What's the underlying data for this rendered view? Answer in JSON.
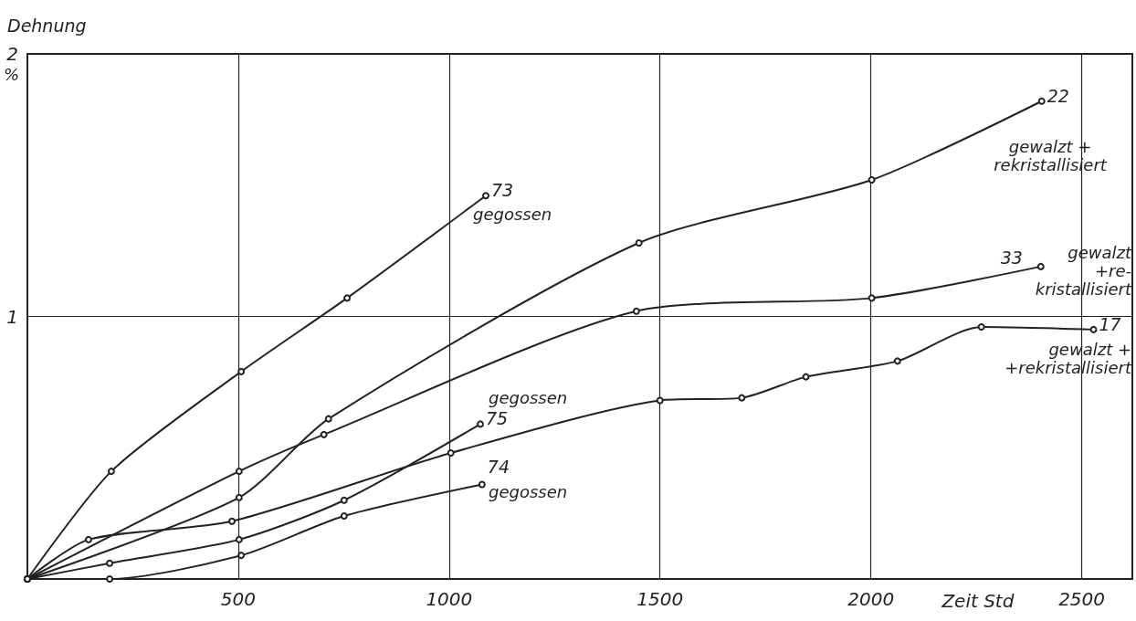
{
  "chart_data": {
    "type": "line",
    "xlabel": "Zeit Std",
    "ylabel": "Dehnung",
    "xlim": [
      0,
      2620
    ],
    "ylim": [
      0,
      2
    ],
    "xticks": [
      500,
      1000,
      1500,
      2000,
      2500
    ],
    "yticks": [
      1,
      2
    ],
    "grid": true,
    "marker": "circle",
    "line_style": "solid",
    "series": [
      {
        "name": "73",
        "color": "#222222",
        "x": [
          0,
          199,
          507,
          758,
          1087
        ],
        "values": [
          0,
          0.41,
          0.79,
          1.07,
          1.46
        ]
      },
      {
        "name": "22",
        "color": "#222222",
        "x": [
          0,
          502,
          714,
          1450,
          2002,
          2405
        ],
        "values": [
          0,
          0.31,
          0.61,
          1.28,
          1.52,
          1.82
        ]
      },
      {
        "name": "33",
        "color": "#222222",
        "x": [
          0,
          502,
          703,
          1444,
          2002,
          2403
        ],
        "values": [
          0,
          0.41,
          0.55,
          1.02,
          1.07,
          1.19
        ]
      },
      {
        "name": "17",
        "color": "#222222",
        "x": [
          0,
          145,
          485,
          1004,
          1500,
          1694,
          1846,
          2063,
          2262,
          2528
        ],
        "values": [
          0,
          0.15,
          0.22,
          0.48,
          0.68,
          0.69,
          0.77,
          0.83,
          0.96,
          0.95
        ]
      },
      {
        "name": "75",
        "color": "#222222",
        "x": [
          0,
          195,
          502,
          751,
          1074
        ],
        "values": [
          0,
          0.06,
          0.15,
          0.3,
          0.59
        ]
      },
      {
        "name": "74",
        "color": "#222222",
        "x": [
          0,
          195,
          507,
          751,
          1078
        ],
        "values": [
          0,
          0.0,
          0.09,
          0.24,
          0.36
        ]
      }
    ],
    "annotations": [
      "%",
      "gegossen",
      "gewalzt +\nrekristallisiert",
      "gewalzt\n+re-\nkristallisiert",
      "gegossen",
      "gegossen",
      "gewalzt +\n+rekristallisiert"
    ]
  }
}
